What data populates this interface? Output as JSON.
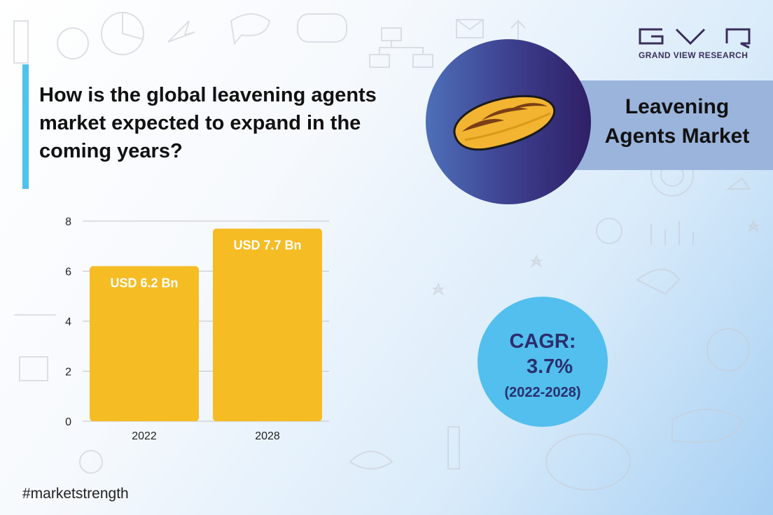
{
  "question": "How is the global leavening agents market expected to expand in the coming years?",
  "brand": {
    "name": "GRAND VIEW RESEARCH"
  },
  "report": {
    "title_line1": "Leavening",
    "title_line2": "Agents Market",
    "image_icon": "bread-loaf-icon"
  },
  "cagr": {
    "label": "CAGR:",
    "value": "3.7%",
    "period": "(2022-2028)"
  },
  "hashtag": "#marketstrength",
  "colors": {
    "accent": "#4dc3ee",
    "bar": "#f5bc24",
    "circle": "#52bfee",
    "brand": "#3a2d5c",
    "band": "#9ab4dc"
  },
  "chart_data": {
    "type": "bar",
    "categories": [
      "2022",
      "2028"
    ],
    "values": [
      6.2,
      7.7
    ],
    "data_labels": [
      "USD 6.2 Bn",
      "USD 7.7 Bn"
    ],
    "ylim": [
      0,
      8
    ],
    "yticks": [
      0,
      2,
      4,
      6,
      8
    ],
    "grid": true
  }
}
